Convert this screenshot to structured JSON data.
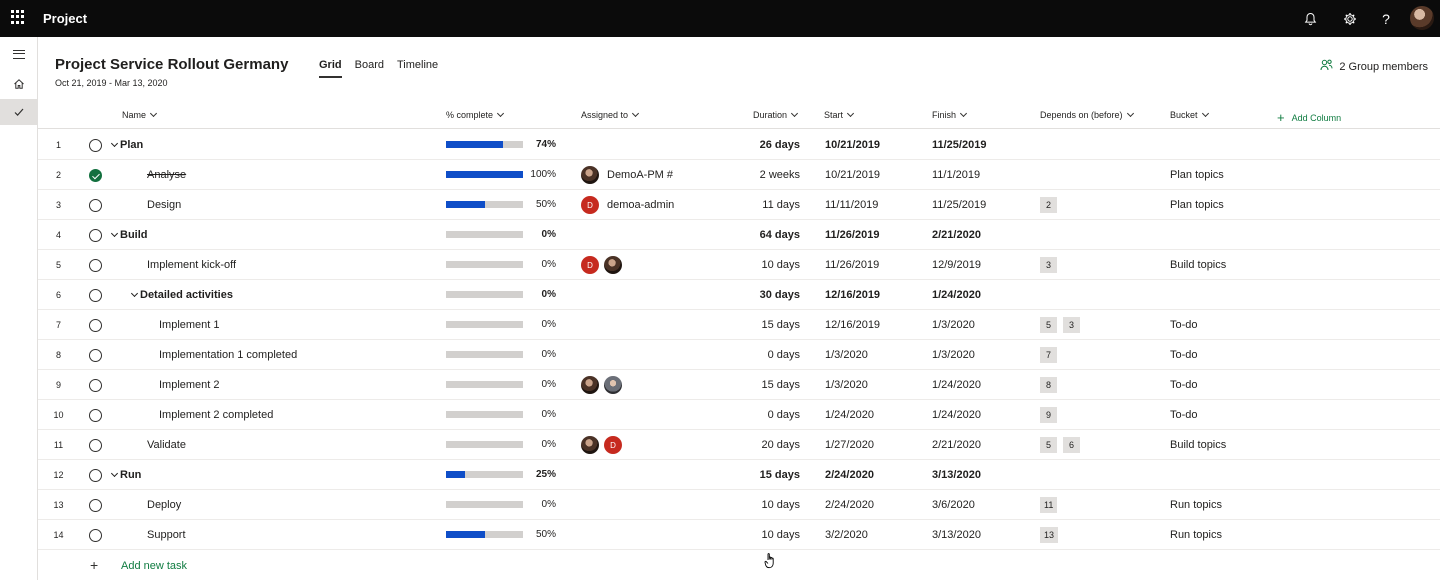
{
  "app": {
    "name": "Project"
  },
  "topbar": {
    "icons": [
      "bell-icon",
      "gear-icon",
      "help-icon"
    ],
    "help_glyph": "?"
  },
  "project": {
    "title": "Project Service Rollout Germany",
    "dates": "Oct 21, 2019 - Mar 13, 2020",
    "tabs": [
      {
        "label": "Grid",
        "active": true
      },
      {
        "label": "Board",
        "active": false
      },
      {
        "label": "Timeline",
        "active": false
      }
    ],
    "group_members": "2 Group members"
  },
  "columns": {
    "name": "Name",
    "percent": "% complete",
    "assigned": "Assigned to",
    "duration": "Duration",
    "start": "Start",
    "finish": "Finish",
    "depends": "Depends on (before)",
    "bucket": "Bucket",
    "add_column": "Add Column"
  },
  "tasks": [
    {
      "num": "1",
      "name": "Plan",
      "summary": true,
      "level": 0,
      "progress": 74,
      "pct": "74%",
      "assignees": [],
      "assignee_name": "",
      "duration": "26 days",
      "start": "10/21/2019",
      "finish": "11/25/2019",
      "depends": [],
      "bucket": "",
      "done": false
    },
    {
      "num": "2",
      "name": "Analyse",
      "summary": false,
      "level": 1,
      "progress": 100,
      "pct": "100%",
      "assignees": [
        "photo"
      ],
      "assignee_name": "DemoA-PM #",
      "duration": "2 weeks",
      "start": "10/21/2019",
      "finish": "11/1/2019",
      "depends": [],
      "bucket": "Plan topics",
      "done": true
    },
    {
      "num": "3",
      "name": "Design",
      "summary": false,
      "level": 1,
      "progress": 50,
      "pct": "50%",
      "assignees": [
        "D"
      ],
      "assignee_name": "demoa-admin",
      "duration": "11 days",
      "start": "11/11/2019",
      "finish": "11/25/2019",
      "depends": [
        "2"
      ],
      "bucket": "Plan topics",
      "done": false
    },
    {
      "num": "4",
      "name": "Build",
      "summary": true,
      "level": 0,
      "progress": 0,
      "pct": "0%",
      "assignees": [],
      "assignee_name": "",
      "duration": "64 days",
      "start": "11/26/2019",
      "finish": "2/21/2020",
      "depends": [],
      "bucket": "",
      "done": false
    },
    {
      "num": "5",
      "name": "Implement kick-off",
      "summary": false,
      "level": 1,
      "progress": 0,
      "pct": "0%",
      "assignees": [
        "D",
        "photo"
      ],
      "assignee_name": "",
      "duration": "10 days",
      "start": "11/26/2019",
      "finish": "12/9/2019",
      "depends": [
        "3"
      ],
      "bucket": "Build topics",
      "done": false
    },
    {
      "num": "6",
      "name": "Detailed activities",
      "summary": true,
      "level": 1,
      "progress": 0,
      "pct": "0%",
      "assignees": [],
      "assignee_name": "",
      "duration": "30 days",
      "start": "12/16/2019",
      "finish": "1/24/2020",
      "depends": [],
      "bucket": "",
      "done": false
    },
    {
      "num": "7",
      "name": "Implement 1",
      "summary": false,
      "level": 2,
      "progress": 0,
      "pct": "0%",
      "assignees": [],
      "assignee_name": "",
      "duration": "15 days",
      "start": "12/16/2019",
      "finish": "1/3/2020",
      "depends": [
        "5",
        "3"
      ],
      "bucket": "To-do",
      "done": false
    },
    {
      "num": "8",
      "name": "Implementation 1 completed",
      "summary": false,
      "level": 2,
      "progress": 0,
      "pct": "0%",
      "assignees": [],
      "assignee_name": "",
      "duration": "0 days",
      "start": "1/3/2020",
      "finish": "1/3/2020",
      "depends": [
        "7"
      ],
      "bucket": "To-do",
      "done": false
    },
    {
      "num": "9",
      "name": "Implement 2",
      "summary": false,
      "level": 2,
      "progress": 0,
      "pct": "0%",
      "assignees": [
        "photo",
        "photo2"
      ],
      "assignee_name": "",
      "duration": "15 days",
      "start": "1/3/2020",
      "finish": "1/24/2020",
      "depends": [
        "8"
      ],
      "bucket": "To-do",
      "done": false
    },
    {
      "num": "10",
      "name": "Implement 2 completed",
      "summary": false,
      "level": 2,
      "progress": 0,
      "pct": "0%",
      "assignees": [],
      "assignee_name": "",
      "duration": "0 days",
      "start": "1/24/2020",
      "finish": "1/24/2020",
      "depends": [
        "9"
      ],
      "bucket": "To-do",
      "done": false
    },
    {
      "num": "11",
      "name": "Validate",
      "summary": false,
      "level": 1,
      "progress": 0,
      "pct": "0%",
      "assignees": [
        "photo",
        "D"
      ],
      "assignee_name": "",
      "duration": "20 days",
      "start": "1/27/2020",
      "finish": "2/21/2020",
      "depends": [
        "5",
        "6"
      ],
      "bucket": "Build topics",
      "done": false
    },
    {
      "num": "12",
      "name": "Run",
      "summary": true,
      "level": 0,
      "progress": 25,
      "pct": "25%",
      "assignees": [],
      "assignee_name": "",
      "duration": "15 days",
      "start": "2/24/2020",
      "finish": "3/13/2020",
      "depends": [],
      "bucket": "",
      "done": false
    },
    {
      "num": "13",
      "name": "Deploy",
      "summary": false,
      "level": 1,
      "progress": 0,
      "pct": "0%",
      "assignees": [],
      "assignee_name": "",
      "duration": "10 days",
      "start": "2/24/2020",
      "finish": "3/6/2020",
      "depends": [
        "11"
      ],
      "bucket": "Run topics",
      "done": false
    },
    {
      "num": "14",
      "name": "Support",
      "summary": false,
      "level": 1,
      "progress": 50,
      "pct": "50%",
      "assignees": [],
      "assignee_name": "",
      "duration": "10 days",
      "start": "3/2/2020",
      "finish": "3/13/2020",
      "depends": [
        "13"
      ],
      "bucket": "Run topics",
      "done": false
    }
  ],
  "add_task": {
    "label": "Add new task",
    "icon": "plus-icon"
  },
  "colors": {
    "accent": "#107c41",
    "progress": "#0f4ec8",
    "topbar": "#0b0b0b",
    "avatar_initial": "#c62a1f"
  }
}
